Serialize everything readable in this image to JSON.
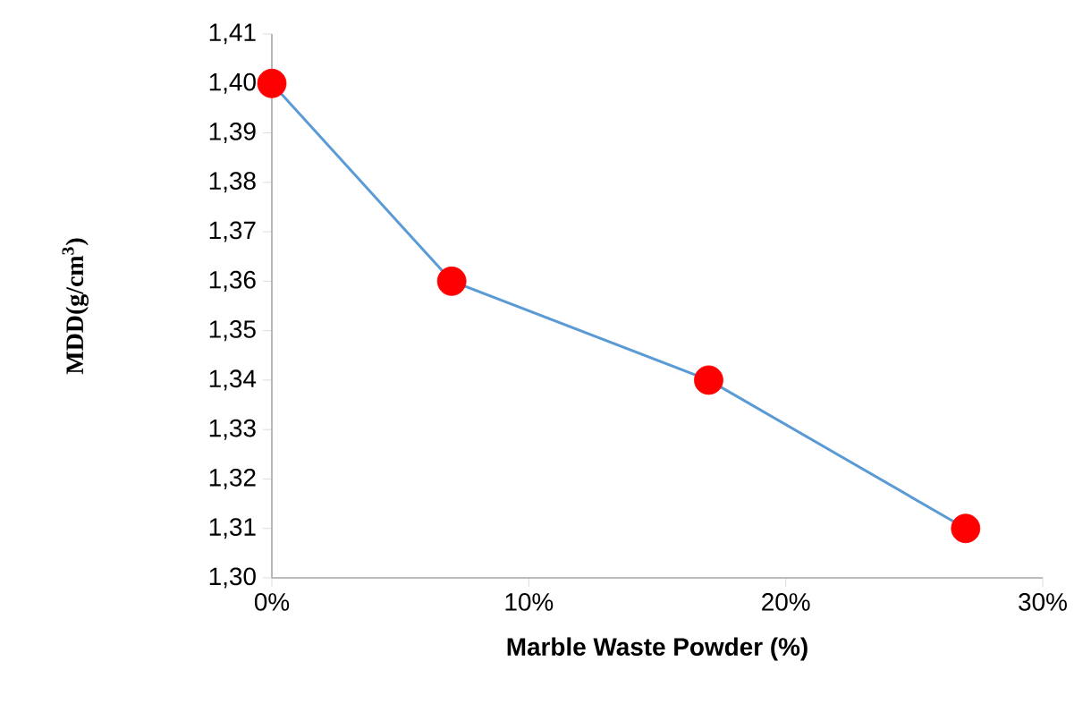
{
  "chart_data": {
    "type": "line",
    "xlabel": "Marble Waste Powder (%)",
    "ylabel": "MDD(g/cm$^{3}$)",
    "x": [
      0,
      7,
      17,
      27
    ],
    "series": [
      {
        "color": "#5b9bd5",
        "colors": [
          "#ff0000",
          "#ff0000",
          "#ff0000",
          "#ff0000"
        ],
        "values": [
          1.4,
          1.36,
          1.34,
          1.31
        ]
      }
    ],
    "xlim": [
      0,
      30
    ],
    "xticks": [
      {
        "value": 0,
        "label": "0%"
      },
      {
        "value": 10,
        "label": "10%"
      },
      {
        "value": 20,
        "label": "20%"
      },
      {
        "value": 30,
        "label": "30%"
      }
    ],
    "ylim": [
      1.3,
      1.41
    ],
    "yticks": [
      {
        "value": 1.3,
        "label": "1,30"
      },
      {
        "value": 1.31,
        "label": "1,31"
      },
      {
        "value": 1.32,
        "label": "1,32"
      },
      {
        "value": 1.33,
        "label": "1,33"
      },
      {
        "value": 1.34,
        "label": "1,34"
      },
      {
        "value": 1.35,
        "label": "1,35"
      },
      {
        "value": 1.36,
        "label": "1,36"
      },
      {
        "value": 1.37,
        "label": "1,37"
      },
      {
        "value": 1.38,
        "label": "1,38"
      },
      {
        "value": 1.39,
        "label": "1,39"
      },
      {
        "value": 1.4,
        "label": "1,40"
      },
      {
        "value": 1.41,
        "label": "1,41"
      }
    ],
    "marker": "circle",
    "grid": false
  }
}
